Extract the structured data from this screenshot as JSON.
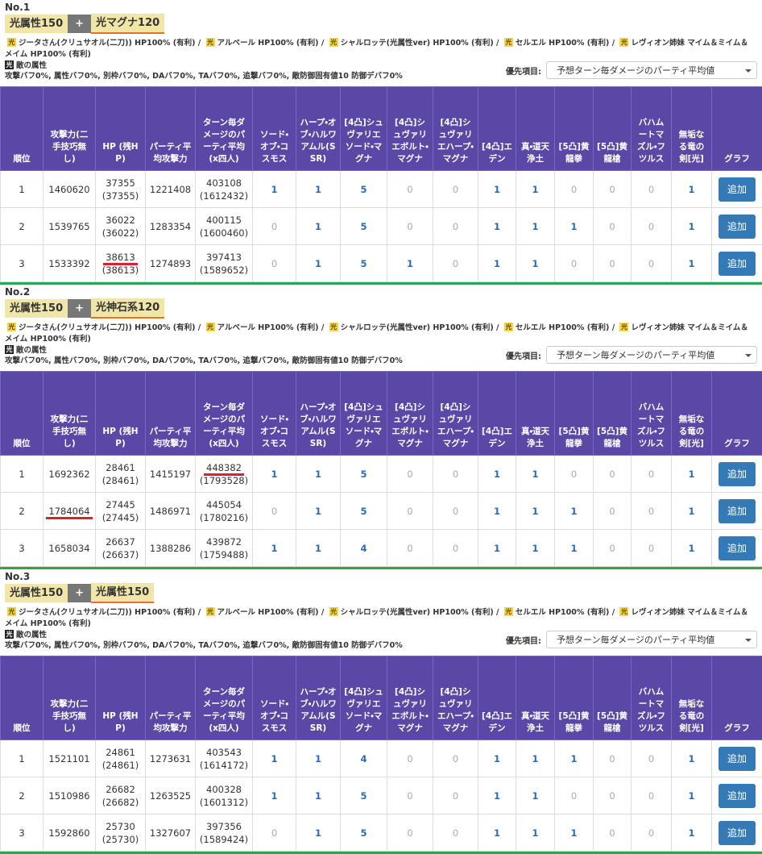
{
  "sections": [
    {
      "number": "No.1",
      "badge": {
        "left": "光属性150",
        "plus": "+",
        "right": "光マグナ120"
      },
      "characters": [
        {
          "element": "光",
          "text": "ジータさん(クリュサオル(二刀)) HP100% (有利)"
        },
        {
          "element": "光",
          "text": "アルベール HP100% (有利)"
        },
        {
          "element": "光",
          "text": "シャルロッテ(光属性ver) HP100% (有利)"
        },
        {
          "element": "光",
          "text": "セルエル HP100% (有利)"
        },
        {
          "element": "光",
          "text": "レヴィオン姉妹 マイム＆ミイム＆メイム HP100% (有利)"
        }
      ],
      "separator": "/",
      "enemy": {
        "element": "光",
        "label": "敵の属性"
      },
      "buffs": "攻撃バフ0%, 属性バフ0%, 別枠バフ0%, DAバフ0%, TAバフ0%, 追撃バフ0%, 敵防御固有値10 防御デバフ0%",
      "priority": {
        "label": "優先項目:",
        "value": "予想ターン毎ダメージのパーティ平均値"
      },
      "table": {
        "headers": [
          "順位",
          "攻撃力(二手技巧無し)",
          "HP (残HP)",
          "パーティ平均攻撃力",
          "ターン毎ダメージのパーティ平均(x四人)",
          "ソード・オブ・コスモス",
          "ハープ・オブ・ハルワアムル(SSR)",
          "[4凸]シュヴァリエソード・マグナ",
          "[4凸]シュヴァリエボルト・マグナ",
          "[4凸]シュヴァリエハープ・マグナ",
          "[4凸]エデン",
          "真・道天浄土",
          "[5凸]黄龍拳",
          "[5凸]黄龍槍",
          "バハムートマズル・フツルス",
          "無垢なる竜の剣[光]",
          "グラフ"
        ],
        "rows": [
          {
            "rank": 1,
            "attack": 1460620,
            "hp": 37355,
            "hp_remaining": "(37355)",
            "party_attack": 1221408,
            "damage": 403108,
            "damage_x4": "(1612432)",
            "counts": [
              1,
              1,
              5,
              0,
              0,
              1,
              1,
              0,
              0,
              0,
              1
            ],
            "button": "追加"
          },
          {
            "rank": 2,
            "attack": 1539765,
            "hp": 36022,
            "hp_remaining": "(36022)",
            "party_attack": 1283354,
            "damage": 400115,
            "damage_x4": "(1600460)",
            "counts": [
              0,
              1,
              5,
              0,
              0,
              1,
              1,
              1,
              0,
              0,
              1
            ],
            "button": "追加"
          },
          {
            "rank": 3,
            "attack": 1533392,
            "hp": 38613,
            "hp_remaining": "(38613)",
            "party_attack": 1274893,
            "damage": 397413,
            "damage_x4": "(1589652)",
            "counts": [
              0,
              1,
              5,
              1,
              0,
              1,
              1,
              0,
              0,
              0,
              1
            ],
            "button": "追加",
            "underline": "hp"
          }
        ]
      }
    },
    {
      "number": "No.2",
      "badge": {
        "left": "光属性150",
        "plus": "+",
        "right": "光神石系120"
      },
      "characters": [
        {
          "element": "光",
          "text": "ジータさん(クリュサオル(二刀)) HP100% (有利)"
        },
        {
          "element": "光",
          "text": "アルベール HP100% (有利)"
        },
        {
          "element": "光",
          "text": "シャルロッテ(光属性ver) HP100% (有利)"
        },
        {
          "element": "光",
          "text": "セルエル HP100% (有利)"
        },
        {
          "element": "光",
          "text": "レヴィオン姉妹 マイム＆ミイム＆メイム HP100% (有利)"
        }
      ],
      "separator": "/",
      "enemy": {
        "element": "光",
        "label": "敵の属性"
      },
      "buffs": "攻撃バフ0%, 属性バフ0%, 別枠バフ0%, DAバフ0%, TAバフ0%, 追撃バフ0%, 敵防御固有値10 防御デバフ0%",
      "priority": {
        "label": "優先項目:",
        "value": "予想ターン毎ダメージのパーティ平均値"
      },
      "table": {
        "headers": [
          "順位",
          "攻撃力(二手技巧無し)",
          "HP (残HP)",
          "パーティ平均攻撃力",
          "ターン毎ダメージのパーティ平均(x四人)",
          "ソード・オブ・コスモス",
          "ハープ・オブ・ハルワアムル(SSR)",
          "[4凸]シュヴァリエソード・マグナ",
          "[4凸]シュヴァリエボルト・マグナ",
          "[4凸]シュヴァリエハープ・マグナ",
          "[4凸]エデン",
          "真・道天浄土",
          "[5凸]黄龍拳",
          "[5凸]黄龍槍",
          "バハムートマズル・フツルス",
          "無垢なる竜の剣[光]",
          "グラフ"
        ],
        "rows": [
          {
            "rank": 1,
            "attack": 1692362,
            "hp": 28461,
            "hp_remaining": "(28461)",
            "party_attack": 1415197,
            "damage": 448382,
            "damage_x4": "(1793528)",
            "counts": [
              1,
              1,
              5,
              0,
              0,
              1,
              1,
              0,
              0,
              0,
              1
            ],
            "button": "追加",
            "underline": "damage"
          },
          {
            "rank": 2,
            "attack": 1784064,
            "hp": 27445,
            "hp_remaining": "(27445)",
            "party_attack": 1486971,
            "damage": 445054,
            "damage_x4": "(1780216)",
            "counts": [
              0,
              1,
              5,
              0,
              0,
              1,
              1,
              1,
              0,
              0,
              1
            ],
            "button": "追加",
            "underline": "attack"
          },
          {
            "rank": 3,
            "attack": 1658034,
            "hp": 26637,
            "hp_remaining": "(26637)",
            "party_attack": 1388286,
            "damage": 439872,
            "damage_x4": "(1759488)",
            "counts": [
              1,
              1,
              4,
              0,
              0,
              1,
              1,
              1,
              0,
              0,
              1
            ],
            "button": "追加"
          }
        ]
      }
    },
    {
      "number": "No.3",
      "badge": {
        "left": "光属性150",
        "plus": "+",
        "right": "光属性150"
      },
      "characters": [
        {
          "element": "光",
          "text": "ジータさん(クリュサオル(二刀)) HP100% (有利)"
        },
        {
          "element": "光",
          "text": "アルベール HP100% (有利)"
        },
        {
          "element": "光",
          "text": "シャルロッテ(光属性ver) HP100% (有利)"
        },
        {
          "element": "光",
          "text": "セルエル HP100% (有利)"
        },
        {
          "element": "光",
          "text": "レヴィオン姉妹 マイム＆ミイム＆メイム HP100% (有利)"
        }
      ],
      "separator": "/",
      "enemy": {
        "element": "光",
        "label": "敵の属性"
      },
      "buffs": "攻撃バフ0%, 属性バフ0%, 別枠バフ0%, DAバフ0%, TAバフ0%, 追撃バフ0%, 敵防御固有値10 防御デバフ0%",
      "priority": {
        "label": "優先項目:",
        "value": "予想ターン毎ダメージのパーティ平均値"
      },
      "table": {
        "headers": [
          "順位",
          "攻撃力(二手技巧無し)",
          "HP (残HP)",
          "パーティ平均攻撃力",
          "ターン毎ダメージのパーティ平均(x四人)",
          "ソード・オブ・コスモス",
          "ハープ・オブ・ハルワアムル(SSR)",
          "[4凸]シュヴァリエソード・マグナ",
          "[4凸]シュヴァリエボルト・マグナ",
          "[4凸]シュヴァリエハープ・マグナ",
          "[4凸]エデン",
          "真・道天浄土",
          "[5凸]黄龍拳",
          "[5凸]黄龍槍",
          "バハムートマズル・フツルス",
          "無垢なる竜の剣[光]",
          "グラフ"
        ],
        "rows": [
          {
            "rank": 1,
            "attack": 1521101,
            "hp": 24861,
            "hp_remaining": "(24861)",
            "party_attack": 1273631,
            "damage": 403543,
            "damage_x4": "(1614172)",
            "counts": [
              1,
              1,
              4,
              0,
              0,
              1,
              1,
              1,
              0,
              0,
              1
            ],
            "button": "追加"
          },
          {
            "rank": 2,
            "attack": 1510986,
            "hp": 26682,
            "hp_remaining": "(26682)",
            "party_attack": 1263525,
            "damage": 400328,
            "damage_x4": "(1601312)",
            "counts": [
              1,
              1,
              5,
              0,
              0,
              1,
              1,
              0,
              0,
              0,
              1
            ],
            "button": "追加"
          },
          {
            "rank": 3,
            "attack": 1592860,
            "hp": 25730,
            "hp_remaining": "(25730)",
            "party_attack": 1327607,
            "damage": 397356,
            "damage_x4": "(1589424)",
            "counts": [
              0,
              1,
              5,
              0,
              0,
              1,
              1,
              1,
              0,
              0,
              1
            ],
            "button": "追加"
          }
        ]
      }
    }
  ]
}
